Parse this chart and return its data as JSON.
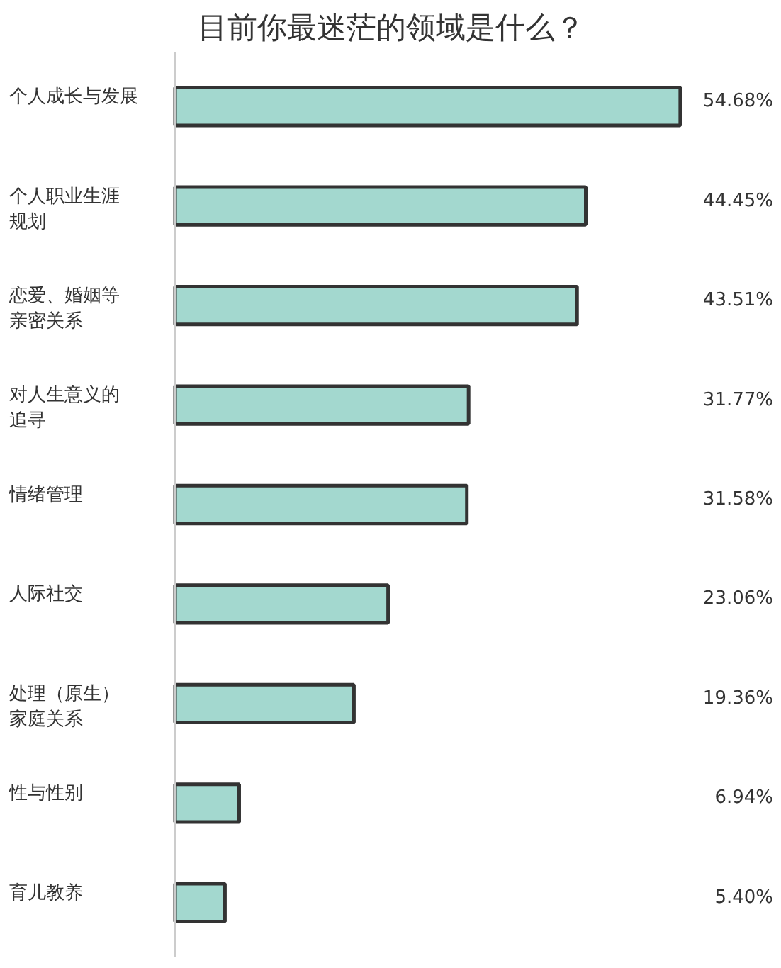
{
  "chart_data": {
    "type": "bar",
    "orientation": "horizontal",
    "title": "目前你最迷茫的领域是什么？",
    "categories": [
      "个人成长与发展",
      "个人职业生涯规划",
      "恋爱、婚姻等亲密关系",
      "对人生意义的追寻",
      "情绪管理",
      "人际社交",
      "处理（原生）家庭关系",
      "性与性别",
      "育儿教养"
    ],
    "values": [
      54.68,
      44.45,
      43.51,
      31.77,
      31.58,
      23.06,
      19.36,
      6.94,
      5.4
    ],
    "value_labels": [
      "54.68%",
      "44.45%",
      "43.51%",
      "31.77%",
      "31.58%",
      "23.06%",
      "19.36%",
      "6.94%",
      "5.40%"
    ],
    "color": "#a3d8cf",
    "tick_labels": false
  }
}
